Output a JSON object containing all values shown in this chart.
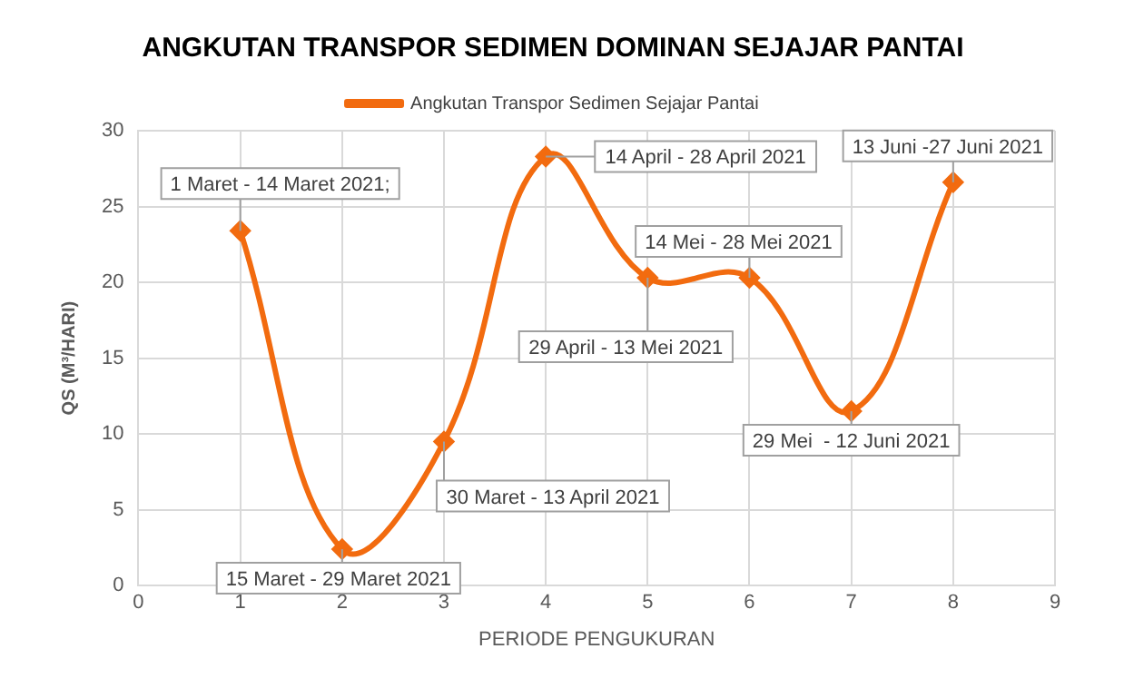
{
  "chart_data": {
    "type": "line",
    "title": "ANGKUTAN TRANSPOR SEDIMEN DOMINAN SEJAJAR PANTAI",
    "xlabel": "PERIODE PENGUKURAN",
    "ylabel": "QS (M³/HARI)",
    "x": [
      1,
      2,
      3,
      4,
      5,
      6,
      7,
      8
    ],
    "series": [
      {
        "name": "Angkutan Transpor Sedimen Sejajar Pantai",
        "color": "#f26b0f",
        "values": [
          23.4,
          2.4,
          9.5,
          28.3,
          20.3,
          20.3,
          11.5,
          26.6
        ]
      }
    ],
    "xlim": [
      0,
      9
    ],
    "xticks": [
      0,
      1,
      2,
      3,
      4,
      5,
      6,
      7,
      8,
      9
    ],
    "ylim": [
      0,
      30
    ],
    "yticks": [
      0,
      5,
      10,
      15,
      20,
      25,
      30
    ],
    "grid": true,
    "legend": "top",
    "marker": "diamond",
    "line_style": "solid",
    "annotations": [
      {
        "text": "1 Maret - 14 Maret 2021;",
        "x": 1,
        "y": 23.4
      },
      {
        "text": "15 Maret - 29 Maret 2021",
        "x": 2,
        "y": 2.4
      },
      {
        "text": "30 Maret - 13 April 2021",
        "x": 3,
        "y": 9.5
      },
      {
        "text": "14 April - 28 April 2021",
        "x": 4,
        "y": 28.3
      },
      {
        "text": "29 April - 13 Mei 2021",
        "x": 5,
        "y": 20.3
      },
      {
        "text": "14 Mei - 28 Mei 2021",
        "x": 6,
        "y": 20.3
      },
      {
        "text": "29 Mei  - 12 Juni 2021",
        "x": 7,
        "y": 11.5
      },
      {
        "text": "13 Juni -27 Juni 2021",
        "x": 8,
        "y": 26.6
      }
    ]
  }
}
